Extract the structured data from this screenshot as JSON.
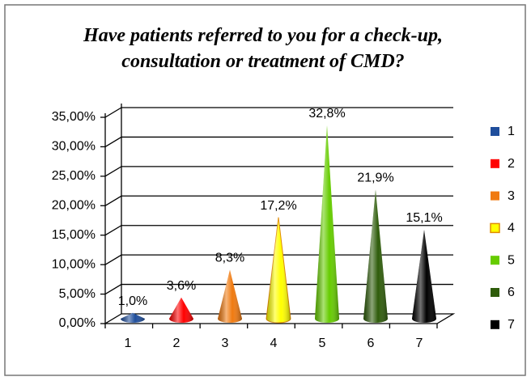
{
  "chart_data": {
    "type": "cone",
    "title": "Have patients referred to you for a check-up, consultation or treatment of CMD?",
    "categories": [
      "1",
      "2",
      "3",
      "4",
      "5",
      "6",
      "7"
    ],
    "values": [
      1.0,
      3.6,
      8.3,
      17.2,
      32.8,
      21.9,
      15.1
    ],
    "value_labels": [
      "1,0%",
      "3,6%",
      "8,3%",
      "17,2%",
      "32,8%",
      "21,9%",
      "15,1%"
    ],
    "colors": [
      "#1f4e9c",
      "#ff0000",
      "#f07a10",
      "#ffff00",
      "#66cc00",
      "#2e5c0a",
      "#000000"
    ],
    "ylim": [
      0,
      35
    ],
    "yticks": [
      {
        "value": 0,
        "label": "0,00%"
      },
      {
        "value": 5,
        "label": "5,00%"
      },
      {
        "value": 10,
        "label": "10,00%"
      },
      {
        "value": 15,
        "label": "15,00%"
      },
      {
        "value": 20,
        "label": "20,00%"
      },
      {
        "value": 25,
        "label": "25,00%"
      },
      {
        "value": 30,
        "label": "30,00%"
      },
      {
        "value": 35,
        "label": "35,00%"
      }
    ],
    "grid": true,
    "legend": "right"
  }
}
